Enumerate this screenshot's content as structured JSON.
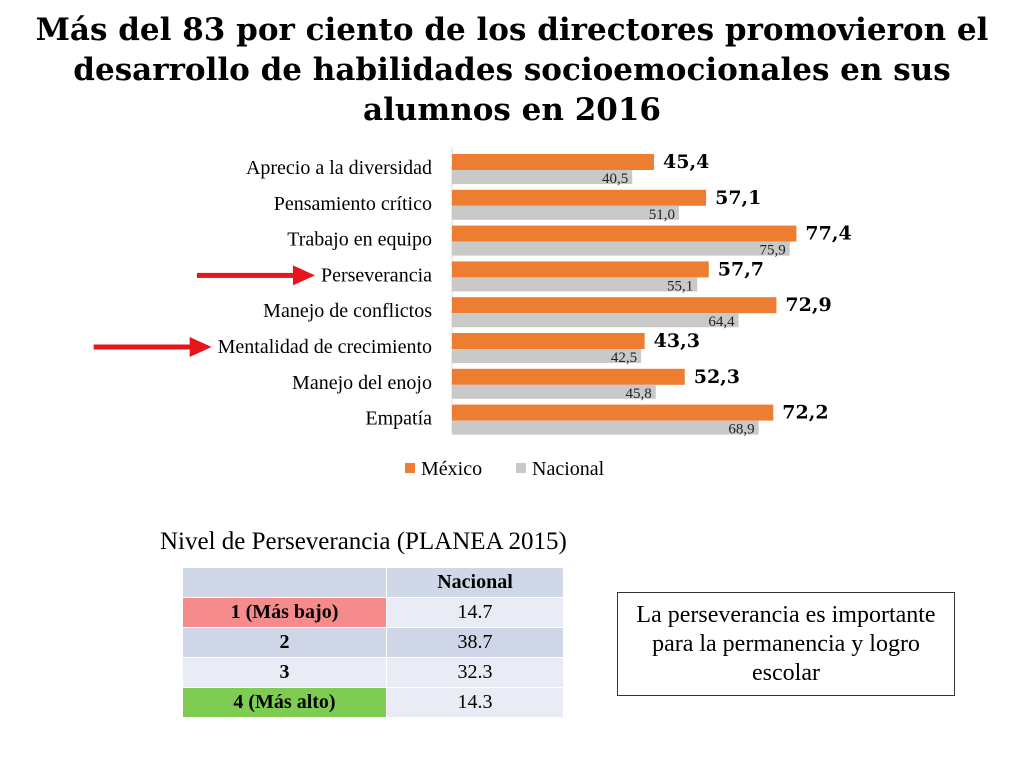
{
  "title_lines": [
    "Más del 83 por ciento de los directores promovieron el",
    "desarrollo de habilidades socioemocionales en sus",
    "alumnos en 2016"
  ],
  "chart_data": {
    "type": "bar",
    "orientation": "horizontal",
    "categories": [
      "Aprecio a la diversidad",
      "Pensamiento crítico",
      "Trabajo en equipo",
      "Perseverancia",
      "Manejo de conflictos",
      "Mentalidad de crecimiento",
      "Manejo del enojo",
      "Empatía"
    ],
    "series": [
      {
        "name": "México",
        "color": "#ed7d31",
        "values": [
          45.4,
          57.1,
          77.4,
          57.7,
          72.9,
          43.3,
          52.3,
          72.2
        ],
        "labels": [
          "45,4",
          "57,1",
          "77,4",
          "57,7",
          "72,9",
          "43,3",
          "52,3",
          "72,2"
        ]
      },
      {
        "name": "Nacional",
        "color": "#c9c9c9",
        "values": [
          40.5,
          51.0,
          75.9,
          55.1,
          64.4,
          42.5,
          45.8,
          68.9
        ],
        "labels": [
          "40,5",
          "51,0",
          "75,9",
          "55,1",
          "64,4",
          "42,5",
          "45,8",
          "68,9"
        ]
      }
    ],
    "highlighted_categories": [
      "Perseverancia",
      "Mentalidad de crecimiento"
    ],
    "highlight_color": "#e8141b",
    "legend_position": "bottom",
    "grid": false
  },
  "table": {
    "caption": "Nivel de Perseverancia (PLANEA 2015)",
    "header": [
      "",
      "Nacional"
    ],
    "rows": [
      [
        "1 (Más bajo)",
        "14.7"
      ],
      [
        "2",
        "38.7"
      ],
      [
        "3",
        "32.3"
      ],
      [
        "4 (Más alto)",
        "14.3"
      ]
    ],
    "colors": {
      "lowest": "#f58b8b",
      "highest": "#7fcc52",
      "header": "#d0d8e8",
      "cell": "#e9ebf5"
    }
  },
  "note": "La perseverancia es importante para la permanencia y logro escolar"
}
